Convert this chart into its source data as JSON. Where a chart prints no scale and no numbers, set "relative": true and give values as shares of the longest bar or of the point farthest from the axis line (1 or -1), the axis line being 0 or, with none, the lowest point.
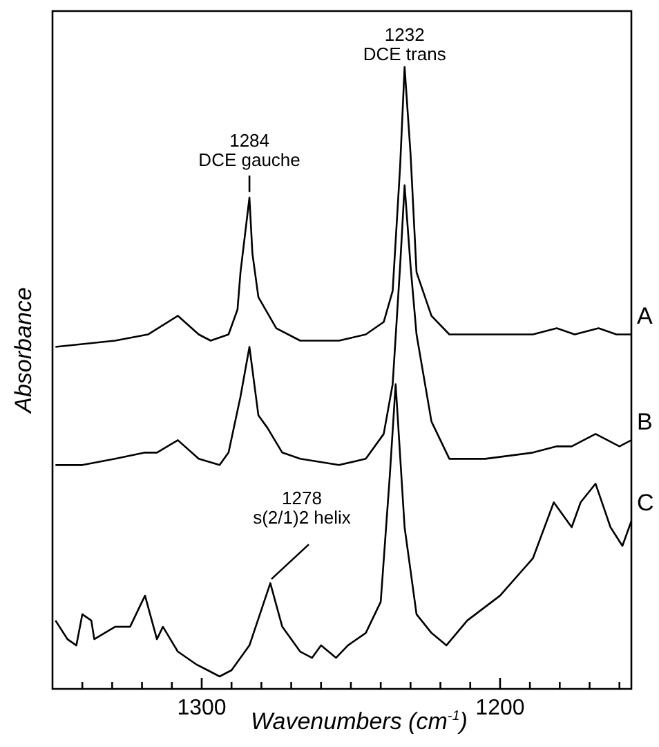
{
  "chart_data": {
    "type": "line",
    "relative": true,
    "xlabel": "Wavenumbers (cm$^{-1}$)",
    "ylabel": "Absorbance",
    "xlim": [
      1350,
      1156
    ],
    "xticks": [
      {
        "value": 1340,
        "label": null
      },
      {
        "value": 1330,
        "label": null
      },
      {
        "value": 1320,
        "label": null
      },
      {
        "value": 1310,
        "label": null
      },
      1300,
      {
        "value": 1290,
        "label": null
      },
      {
        "value": 1280,
        "label": null
      },
      {
        "value": 1270,
        "label": null
      },
      {
        "value": 1260,
        "label": null
      },
      {
        "value": 1250,
        "label": null
      },
      {
        "value": 1240,
        "label": null
      },
      {
        "value": 1230,
        "label": null
      },
      {
        "value": 1220,
        "label": null
      },
      {
        "value": 1210,
        "label": null
      },
      1200,
      {
        "value": 1190,
        "label": null
      },
      {
        "value": 1180,
        "label": null
      },
      {
        "value": 1170,
        "label": null
      },
      {
        "value": 1160,
        "label": null
      }
    ],
    "grid": false,
    "legend": false,
    "marker": "none",
    "line_style": "solid",
    "series": [
      {
        "name": "A",
        "color": "#000000",
        "x": [
          1349,
          1329,
          1318,
          1308,
          1301,
          1297,
          1291,
          1288,
          1287,
          1284,
          1283,
          1281,
          1275,
          1267,
          1254,
          1245,
          1239,
          1236,
          1233.5,
          1232,
          1230,
          1228,
          1223,
          1217,
          1205,
          1189,
          1181,
          1175,
          1167,
          1161,
          1156
        ],
        "values": [
          0.55,
          0.56,
          0.57,
          0.6,
          0.57,
          0.56,
          0.57,
          0.61,
          0.67,
          0.79,
          0.7,
          0.63,
          0.58,
          0.56,
          0.56,
          0.57,
          0.59,
          0.64,
          0.84,
          1.0,
          0.86,
          0.67,
          0.6,
          0.57,
          0.57,
          0.57,
          0.58,
          0.57,
          0.58,
          0.57,
          0.57
        ]
      },
      {
        "name": "B",
        "color": "#000000",
        "x": [
          1349,
          1340,
          1329,
          1319,
          1315,
          1308,
          1301,
          1294,
          1291,
          1287,
          1284,
          1281,
          1278,
          1273,
          1267,
          1254,
          1245,
          1239,
          1236,
          1233.5,
          1232,
          1230,
          1228,
          1223,
          1217,
          1205,
          1189,
          1181,
          1176,
          1168,
          1160,
          1156
        ],
        "values": [
          0.36,
          0.36,
          0.37,
          0.38,
          0.38,
          0.4,
          0.37,
          0.36,
          0.38,
          0.47,
          0.55,
          0.44,
          0.42,
          0.38,
          0.37,
          0.36,
          0.37,
          0.41,
          0.49,
          0.68,
          0.81,
          0.68,
          0.57,
          0.43,
          0.37,
          0.37,
          0.38,
          0.39,
          0.39,
          0.41,
          0.39,
          0.4
        ]
      },
      {
        "name": "C",
        "color": "#000000",
        "x": [
          1349,
          1345,
          1342,
          1340,
          1337,
          1336,
          1329,
          1324,
          1319,
          1315,
          1313,
          1308,
          1302,
          1298,
          1294,
          1290,
          1284,
          1277,
          1273,
          1267,
          1263,
          1260,
          1255,
          1251,
          1245,
          1240,
          1237,
          1235,
          1232,
          1228,
          1223,
          1218,
          1211,
          1200,
          1189,
          1182,
          1176,
          1173,
          1168,
          1163,
          1159,
          1156
        ],
        "values": [
          0.11,
          0.08,
          0.07,
          0.12,
          0.11,
          0.08,
          0.1,
          0.1,
          0.15,
          0.08,
          0.1,
          0.06,
          0.04,
          0.03,
          0.02,
          0.03,
          0.07,
          0.17,
          0.1,
          0.06,
          0.05,
          0.07,
          0.05,
          0.07,
          0.09,
          0.14,
          0.34,
          0.49,
          0.26,
          0.12,
          0.09,
          0.07,
          0.11,
          0.15,
          0.21,
          0.3,
          0.26,
          0.3,
          0.33,
          0.26,
          0.23,
          0.27
        ]
      }
    ],
    "annotations": [
      {
        "text": "1284\nDCE gauche",
        "x": 1284,
        "y": 0.79
      },
      {
        "text": "1232\nDCE trans",
        "x": 1232,
        "y": 1.0
      },
      {
        "text": "1278\ns(2/1)2 helix",
        "x": 1278,
        "y": 0.17
      }
    ]
  }
}
